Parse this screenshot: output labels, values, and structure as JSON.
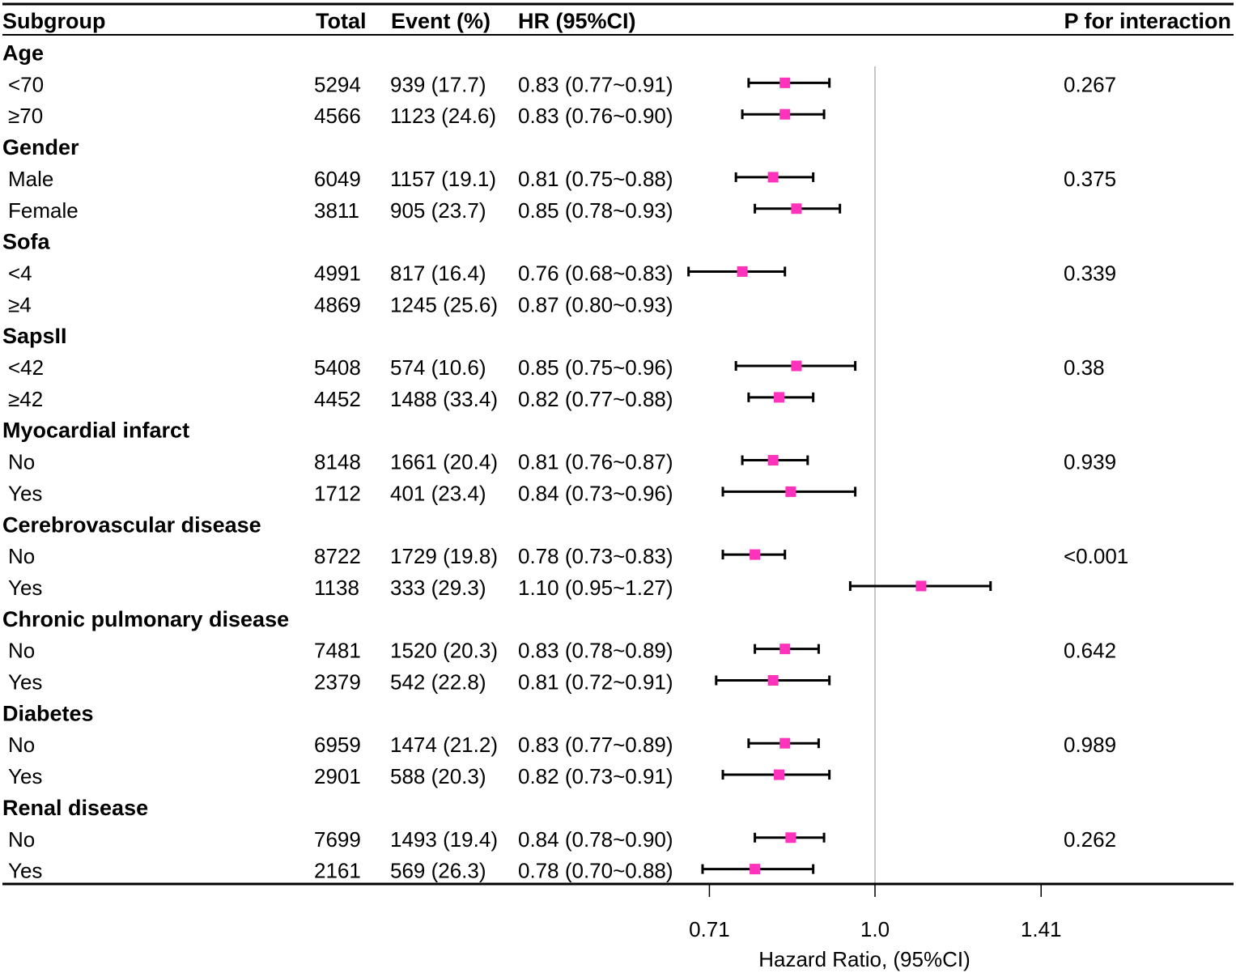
{
  "chart_data": {
    "type": "forest",
    "xlabel": "Hazard Ratio, (95%CI)",
    "x_scale": "log2",
    "reference_line": 1.0,
    "xticks": [
      {
        "value": 0.71,
        "label": "0.71"
      },
      {
        "value": 1.0,
        "label": "1.0"
      },
      {
        "value": 1.41,
        "label": "1.41"
      }
    ],
    "columns": [
      "Subgroup",
      "Total",
      "Event (%)",
      "HR (95%CI)",
      "P for interaction"
    ],
    "marker_color": "#ff33bb",
    "groups": [
      {
        "name": "Age",
        "p_interaction": "0.267",
        "rows": [
          {
            "label": "<70",
            "total": "5294",
            "event": "939 (17.7)",
            "hr_text": "0.83 (0.77~0.91)",
            "hr": 0.83,
            "lo": 0.77,
            "hi": 0.91
          },
          {
            "label": "≥70",
            "total": "4566",
            "event": "1123 (24.6)",
            "hr_text": "0.83 (0.76~0.90)",
            "hr": 0.83,
            "lo": 0.76,
            "hi": 0.9
          }
        ]
      },
      {
        "name": "Gender",
        "p_interaction": "0.375",
        "rows": [
          {
            "label": "Male",
            "total": "6049",
            "event": "1157 (19.1)",
            "hr_text": "0.81 (0.75~0.88)",
            "hr": 0.81,
            "lo": 0.75,
            "hi": 0.88
          },
          {
            "label": "Female",
            "total": "3811",
            "event": "905 (23.7)",
            "hr_text": "0.85 (0.78~0.93)",
            "hr": 0.85,
            "lo": 0.78,
            "hi": 0.93
          }
        ]
      },
      {
        "name": "Sofa",
        "p_interaction": "0.339",
        "rows": [
          {
            "label": "<4",
            "total": "4991",
            "event": "817 (16.4)",
            "hr_text": "0.76 (0.68~0.83)",
            "hr": 0.76,
            "lo": 0.68,
            "hi": 0.83
          },
          {
            "label": "≥4",
            "total": "4869",
            "event": "1245 (25.6)",
            "hr_text": "0.87 (0.80~0.93)",
            "hr": 0.87,
            "lo": 0.8,
            "hi": 0.93,
            "plotted": false
          }
        ]
      },
      {
        "name": "SapsII",
        "p_interaction": "0.38",
        "rows": [
          {
            "label": "<42",
            "total": "5408",
            "event": "574 (10.6)",
            "hr_text": "0.85 (0.75~0.96)",
            "hr": 0.85,
            "lo": 0.75,
            "hi": 0.96
          },
          {
            "label": "≥42",
            "total": "4452",
            "event": "1488 (33.4)",
            "hr_text": "0.82 (0.77~0.88)",
            "hr": 0.82,
            "lo": 0.77,
            "hi": 0.88
          }
        ]
      },
      {
        "name": "Myocardial infarct",
        "p_interaction": "0.939",
        "rows": [
          {
            "label": "No",
            "total": "8148",
            "event": "1661 (20.4)",
            "hr_text": "0.81 (0.76~0.87)",
            "hr": 0.81,
            "lo": 0.76,
            "hi": 0.87
          },
          {
            "label": "Yes",
            "total": "1712",
            "event": "401 (23.4)",
            "hr_text": "0.84 (0.73~0.96)",
            "hr": 0.84,
            "lo": 0.73,
            "hi": 0.96
          }
        ]
      },
      {
        "name": "Cerebrovascular disease",
        "p_interaction": "<0.001",
        "rows": [
          {
            "label": "No",
            "total": "8722",
            "event": "1729 (19.8)",
            "hr_text": "0.78 (0.73~0.83)",
            "hr": 0.78,
            "lo": 0.73,
            "hi": 0.83
          },
          {
            "label": "Yes",
            "total": "1138",
            "event": "333 (29.3)",
            "hr_text": "1.10 (0.95~1.27)",
            "hr": 1.1,
            "lo": 0.95,
            "hi": 1.27
          }
        ]
      },
      {
        "name": "Chronic pulmonary disease",
        "p_interaction": "0.642",
        "rows": [
          {
            "label": "No",
            "total": "7481",
            "event": "1520 (20.3)",
            "hr_text": "0.83 (0.78~0.89)",
            "hr": 0.83,
            "lo": 0.78,
            "hi": 0.89
          },
          {
            "label": "Yes",
            "total": "2379",
            "event": "542 (22.8)",
            "hr_text": "0.81 (0.72~0.91)",
            "hr": 0.81,
            "lo": 0.72,
            "hi": 0.91
          }
        ]
      },
      {
        "name": "Diabetes",
        "p_interaction": "0.989",
        "rows": [
          {
            "label": "No",
            "total": "6959",
            "event": "1474 (21.2)",
            "hr_text": "0.83 (0.77~0.89)",
            "hr": 0.83,
            "lo": 0.77,
            "hi": 0.89
          },
          {
            "label": "Yes",
            "total": "2901",
            "event": "588 (20.3)",
            "hr_text": "0.82 (0.73~0.91)",
            "hr": 0.82,
            "lo": 0.73,
            "hi": 0.91
          }
        ]
      },
      {
        "name": "Renal disease",
        "p_interaction": "0.262",
        "rows": [
          {
            "label": "No",
            "total": "7699",
            "event": "1493 (19.4)",
            "hr_text": "0.84 (0.78~0.90)",
            "hr": 0.84,
            "lo": 0.78,
            "hi": 0.9
          },
          {
            "label": "Yes",
            "total": "2161",
            "event": "569 (26.3)",
            "hr_text": "0.78 (0.70~0.88)",
            "hr": 0.78,
            "lo": 0.7,
            "hi": 0.88
          }
        ]
      }
    ]
  }
}
